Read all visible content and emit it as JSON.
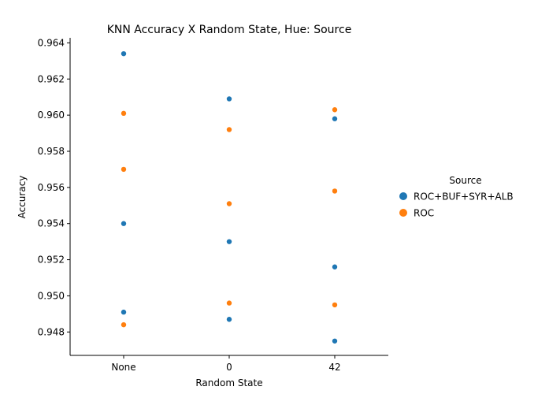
{
  "chart_data": {
    "type": "scatter",
    "title": "KNN Accuracy X Random State, Hue: Source",
    "xlabel": "Random State",
    "ylabel": "Accuracy",
    "categories": [
      "None",
      "0",
      "42"
    ],
    "ylim": [
      0.9467,
      0.9643
    ],
    "yticks": [
      "0.948",
      "0.950",
      "0.952",
      "0.954",
      "0.956",
      "0.958",
      "0.960",
      "0.962",
      "0.964"
    ],
    "grid": false,
    "legend": {
      "title": "Source",
      "placement": "center-right"
    },
    "series": [
      {
        "name": "ROC+BUF+SYR+ALB",
        "color": "#1f77b4",
        "points": [
          {
            "x": "None",
            "y": 0.9634
          },
          {
            "x": "None",
            "y": 0.954
          },
          {
            "x": "None",
            "y": 0.9491
          },
          {
            "x": "0",
            "y": 0.9609
          },
          {
            "x": "0",
            "y": 0.953
          },
          {
            "x": "0",
            "y": 0.9487
          },
          {
            "x": "42",
            "y": 0.9598
          },
          {
            "x": "42",
            "y": 0.9516
          },
          {
            "x": "42",
            "y": 0.9475
          }
        ]
      },
      {
        "name": "ROC",
        "color": "#ff7f0e",
        "points": [
          {
            "x": "None",
            "y": 0.9601
          },
          {
            "x": "None",
            "y": 0.957
          },
          {
            "x": "None",
            "y": 0.9484
          },
          {
            "x": "0",
            "y": 0.9592
          },
          {
            "x": "0",
            "y": 0.9551
          },
          {
            "x": "0",
            "y": 0.9496
          },
          {
            "x": "42",
            "y": 0.9603
          },
          {
            "x": "42",
            "y": 0.9558
          },
          {
            "x": "42",
            "y": 0.9495
          }
        ]
      }
    ]
  }
}
